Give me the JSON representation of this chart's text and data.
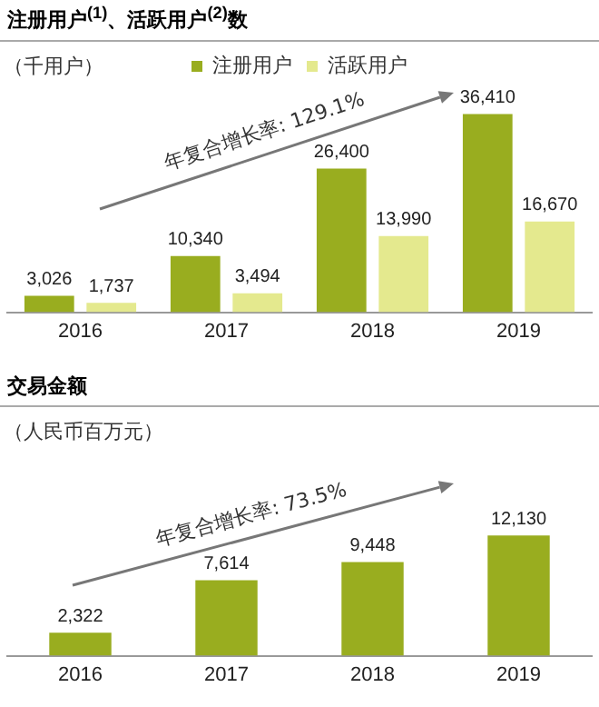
{
  "chart_data": [
    {
      "type": "bar",
      "title": "注册用户$^{(1)}$、活跃用户$^{(2)}$数",
      "subtitle": "（千用户）",
      "categories": [
        "2016",
        "2017",
        "2018",
        "2019"
      ],
      "series": [
        {
          "name": "注册用户",
          "color": "#99ad1f",
          "values": [
            3026,
            10340,
            26400,
            36410
          ],
          "value_labels": [
            "3,026",
            "10,340",
            "26,400",
            "36,410"
          ]
        },
        {
          "name": "活跃用户",
          "color": "#e4e98e",
          "values": [
            1737,
            3494,
            13990,
            16670
          ],
          "value_labels": [
            "1,737",
            "3,494",
            "13,990",
            "16,670"
          ]
        }
      ],
      "annotations": [
        "年复合增长率: 129.1%"
      ],
      "legend": "top",
      "grid": false
    },
    {
      "type": "bar",
      "title": "交易金额",
      "subtitle": "（人民币百万元）",
      "categories": [
        "2016",
        "2017",
        "2018",
        "2019"
      ],
      "series": [
        {
          "color": "#99ad1f",
          "values": [
            2322,
            7614,
            9448,
            12130
          ],
          "value_labels": [
            "2,322",
            "7,614",
            "9,448",
            "12,130"
          ]
        }
      ],
      "annotations": [
        "年复合增长率: 73.5%"
      ],
      "grid": false
    }
  ]
}
